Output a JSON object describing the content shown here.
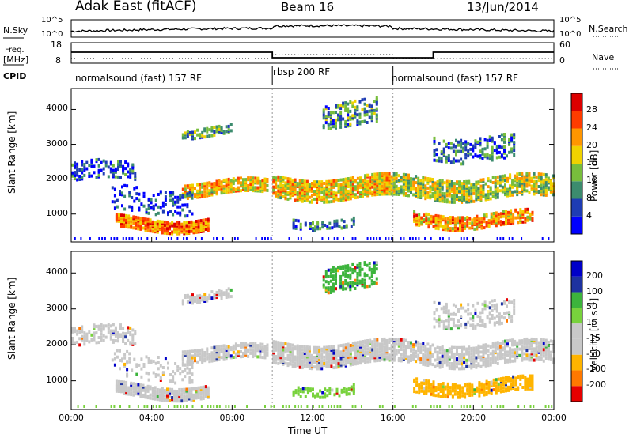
{
  "header": {
    "station": "Adak East (fitACF)",
    "beam": "Beam 16",
    "date": "13/Jun/2014"
  },
  "left_labels": {
    "nsky": "N.Sky",
    "freq": "Freq.",
    "mhz": "[MHz]",
    "cpid": "CPID"
  },
  "right_labels": {
    "nsearch": "N.Search",
    "nave": "Nave"
  },
  "noise_ticks": {
    "left_top": "10^5",
    "left_bottom": "10^0",
    "right_top": "10^5",
    "right_bottom": "10^0"
  },
  "freq_ticks": {
    "left_top": "18",
    "left_bottom": "8",
    "right_top": "60",
    "right_bottom": "0"
  },
  "cpid_segments": [
    {
      "label": "normalsound (fast) 157 RF",
      "start": 0,
      "end": 10
    },
    {
      "label": "rbsp 200 RF",
      "start": 10,
      "end": 16
    },
    {
      "label": "normalsound (fast) 157 RF",
      "start": 16,
      "end": 24
    }
  ],
  "colors": {
    "power": [
      "#0000ff",
      "#1e3cb4",
      "#3c8c6e",
      "#78be3c",
      "#f0d200",
      "#ff9600",
      "#ff3c00",
      "#dc0000"
    ],
    "velocity_map": [
      "#e60000",
      "#ff7800",
      "#ffb400",
      "#c8c8c8",
      "#c8c8c8",
      "#78d23c",
      "#3cb43c",
      "#1e32a0",
      "#0000c8"
    ]
  },
  "chart_data": [
    {
      "type": "heatmap",
      "name": "power",
      "ylabel": "Slant Range [km]",
      "y_ticks": [
        "1000",
        "2000",
        "3000",
        "4000"
      ],
      "ylim": [
        200,
        4600
      ],
      "xlim": [
        0,
        24
      ],
      "colorbar_label": "Power [dB]",
      "colorbar_ticks": [
        "4",
        "8",
        "12",
        "16",
        "20",
        "24",
        "28"
      ]
    },
    {
      "type": "heatmap",
      "name": "velocity",
      "ylabel": "Slant Range [km]",
      "y_ticks": [
        "1000",
        "2000",
        "3000",
        "4000"
      ],
      "ylim": [
        200,
        4600
      ],
      "xlim": [
        0,
        24
      ],
      "colorbar_label": "Velocity [m s⁻¹]",
      "colorbar_ticks": [
        "-200",
        "-100",
        "-50",
        "-15",
        "15",
        "50",
        "100",
        "200"
      ]
    }
  ],
  "x_axis": {
    "label": "Time UT",
    "ticks": [
      "00:00",
      "04:00",
      "08:00",
      "12:00",
      "16:00",
      "20:00",
      "00:00"
    ]
  }
}
